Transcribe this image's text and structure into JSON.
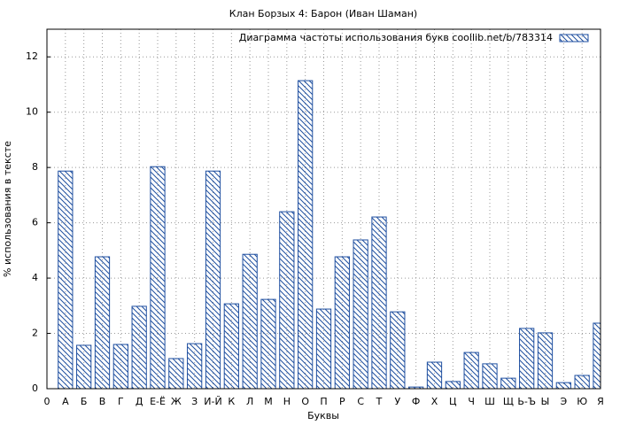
{
  "chart_data": {
    "type": "bar",
    "title": "Клан Борзых 4: Барон (Иван Шаман)",
    "x_label": "Буквы",
    "y_label": "% использования в тексте",
    "categories": [
      "0",
      "А",
      "Б",
      "В",
      "Г",
      "Д",
      "Е-Ё",
      "Ж",
      "З",
      "И-Й",
      "К",
      "Л",
      "М",
      "Н",
      "О",
      "П",
      "Р",
      "С",
      "Т",
      "У",
      "Ф",
      "Х",
      "Ц",
      "Ч",
      "Ш",
      "Щ",
      "Ь-Ъ",
      "Ы",
      "Э",
      "Ю",
      "Я"
    ],
    "series": [
      {
        "name": "Диаграмма частоты использования букв coollib.net/b/783314",
        "color": "#1f4fa0",
        "values": [
          null,
          7.87,
          1.57,
          4.77,
          1.6,
          2.98,
          8.03,
          1.09,
          1.63,
          7.87,
          3.07,
          4.86,
          3.23,
          6.4,
          11.14,
          2.88,
          4.77,
          5.38,
          6.21,
          2.78,
          0.06,
          0.96,
          0.26,
          1.31,
          0.9,
          0.38,
          2.18,
          2.02,
          0.22,
          0.48,
          2.37
        ]
      }
    ],
    "ylim": [
      0,
      13
    ],
    "yticks": [
      0,
      2,
      4,
      6,
      8,
      10,
      12
    ],
    "grid": true,
    "legend": "top-right"
  }
}
